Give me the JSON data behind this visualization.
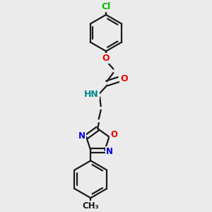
{
  "background_color": "#ebebeb",
  "bond_color": "#1a1a1a",
  "atom_colors": {
    "Cl": "#00bb00",
    "O": "#ee0000",
    "N": "#0000ee",
    "HN": "#008888",
    "C": "#1a1a1a"
  },
  "figsize": [
    3.0,
    3.0
  ],
  "dpi": 100
}
